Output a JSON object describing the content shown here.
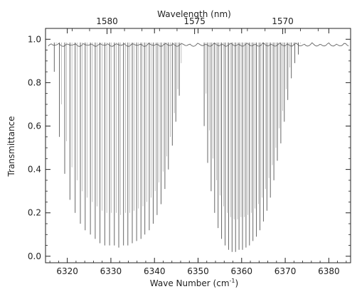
{
  "chart_data": {
    "type": "line",
    "title": "",
    "xlabel": "Wave Number (cm",
    "xlabel_sup": "-1",
    "xlabel_close": ")",
    "ylabel": "Transmittance",
    "top_axis_label": "Wavelength (nm)",
    "xlim": [
      6315,
      6385
    ],
    "ylim": [
      -0.03,
      1.05
    ],
    "x_ticks": [
      6320,
      6330,
      6340,
      6350,
      6360,
      6370,
      6380
    ],
    "x_tick_labels": [
      "6320",
      "6330",
      "6340",
      "6350",
      "6360",
      "6370",
      "6380"
    ],
    "y_ticks": [
      0.0,
      0.2,
      0.4,
      0.6,
      0.8,
      1.0
    ],
    "y_tick_labels": [
      "0.0",
      "0.2",
      "0.4",
      "0.6",
      "0.8",
      "1.0"
    ],
    "top_ticks_nm": [
      1580,
      1575,
      1570
    ],
    "top_tick_labels": [
      "1580",
      "1575",
      "1570"
    ],
    "grid": false,
    "legend": "none",
    "line_color": "#555555",
    "series": [
      {
        "lines": [
          {
            "x": 6317.0,
            "y": 0.85
          },
          {
            "x": 6318.2,
            "y": 0.55
          },
          {
            "x": 6319.4,
            "y": 0.38
          },
          {
            "x": 6320.6,
            "y": 0.26
          },
          {
            "x": 6321.8,
            "y": 0.2
          },
          {
            "x": 6323.0,
            "y": 0.15
          },
          {
            "x": 6324.1,
            "y": 0.12
          },
          {
            "x": 6325.3,
            "y": 0.1
          },
          {
            "x": 6326.4,
            "y": 0.08
          },
          {
            "x": 6327.5,
            "y": 0.06
          },
          {
            "x": 6328.6,
            "y": 0.05
          },
          {
            "x": 6329.7,
            "y": 0.05
          },
          {
            "x": 6330.8,
            "y": 0.05
          },
          {
            "x": 6331.8,
            "y": 0.04
          },
          {
            "x": 6332.9,
            "y": 0.05
          },
          {
            "x": 6333.9,
            "y": 0.05
          },
          {
            "x": 6334.9,
            "y": 0.06
          },
          {
            "x": 6335.9,
            "y": 0.07
          },
          {
            "x": 6336.9,
            "y": 0.08
          },
          {
            "x": 6337.8,
            "y": 0.1
          },
          {
            "x": 6338.8,
            "y": 0.12
          },
          {
            "x": 6339.7,
            "y": 0.15
          },
          {
            "x": 6340.6,
            "y": 0.19
          },
          {
            "x": 6341.5,
            "y": 0.24
          },
          {
            "x": 6342.4,
            "y": 0.31
          },
          {
            "x": 6343.2,
            "y": 0.4
          },
          {
            "x": 6344.1,
            "y": 0.51
          },
          {
            "x": 6344.9,
            "y": 0.62
          },
          {
            "x": 6345.7,
            "y": 0.74
          },
          {
            "x": 6351.4,
            "y": 0.6
          },
          {
            "x": 6352.2,
            "y": 0.43
          },
          {
            "x": 6353.0,
            "y": 0.3
          },
          {
            "x": 6353.8,
            "y": 0.2
          },
          {
            "x": 6354.6,
            "y": 0.13
          },
          {
            "x": 6355.4,
            "y": 0.08
          },
          {
            "x": 6356.2,
            "y": 0.05
          },
          {
            "x": 6357.0,
            "y": 0.03
          },
          {
            "x": 6357.8,
            "y": 0.02
          },
          {
            "x": 6358.6,
            "y": 0.02
          },
          {
            "x": 6359.4,
            "y": 0.03
          },
          {
            "x": 6360.2,
            "y": 0.03
          },
          {
            "x": 6361.0,
            "y": 0.04
          },
          {
            "x": 6361.8,
            "y": 0.05
          },
          {
            "x": 6362.6,
            "y": 0.07
          },
          {
            "x": 6363.4,
            "y": 0.09
          },
          {
            "x": 6364.2,
            "y": 0.12
          },
          {
            "x": 6365.0,
            "y": 0.16
          },
          {
            "x": 6365.8,
            "y": 0.21
          },
          {
            "x": 6366.6,
            "y": 0.27
          },
          {
            "x": 6367.4,
            "y": 0.35
          },
          {
            "x": 6368.2,
            "y": 0.44
          },
          {
            "x": 6369.0,
            "y": 0.52
          },
          {
            "x": 6369.8,
            "y": 0.62
          },
          {
            "x": 6370.6,
            "y": 0.72
          },
          {
            "x": 6371.4,
            "y": 0.82
          },
          {
            "x": 6372.2,
            "y": 0.89
          },
          {
            "x": 6373.0,
            "y": 0.93
          }
        ]
      }
    ]
  }
}
